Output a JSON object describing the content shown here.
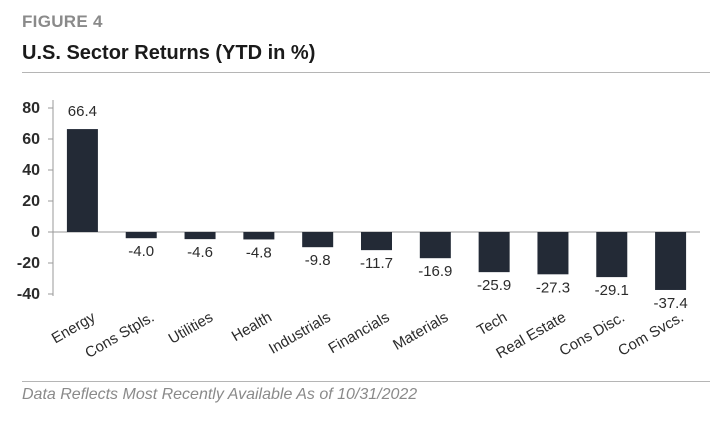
{
  "header": {
    "figure_label": "FIGURE 4",
    "title": "U.S. Sector Returns (YTD in %)"
  },
  "footer": {
    "note": "Data Reflects Most Recently Available As of 10/31/2022"
  },
  "colors": {
    "bar": "#232a36",
    "axis": "#9a9a9a"
  },
  "chart_data": {
    "type": "bar",
    "title": "U.S. Sector Returns (YTD in %)",
    "xlabel": "",
    "ylabel": "",
    "ylim": [
      -40,
      80
    ],
    "yticks": [
      80,
      60,
      40,
      20,
      0,
      -20,
      -40
    ],
    "grid": false,
    "categories": [
      "Energy",
      "Cons Stpls.",
      "Utilities",
      "Health",
      "Industrials",
      "Financials",
      "Materials",
      "Tech",
      "Real Estate",
      "Cons Disc.",
      "Com Svcs."
    ],
    "values": [
      66.4,
      -4.0,
      -4.6,
      -4.8,
      -9.8,
      -11.7,
      -16.9,
      -25.9,
      -27.3,
      -29.1,
      -37.4
    ],
    "data_labels": [
      "66.4",
      "-4.0",
      "-4.6",
      "-4.8",
      "-9.8",
      "-11.7",
      "-16.9",
      "-25.9",
      "-27.3",
      "-29.1",
      "-37.4"
    ]
  }
}
